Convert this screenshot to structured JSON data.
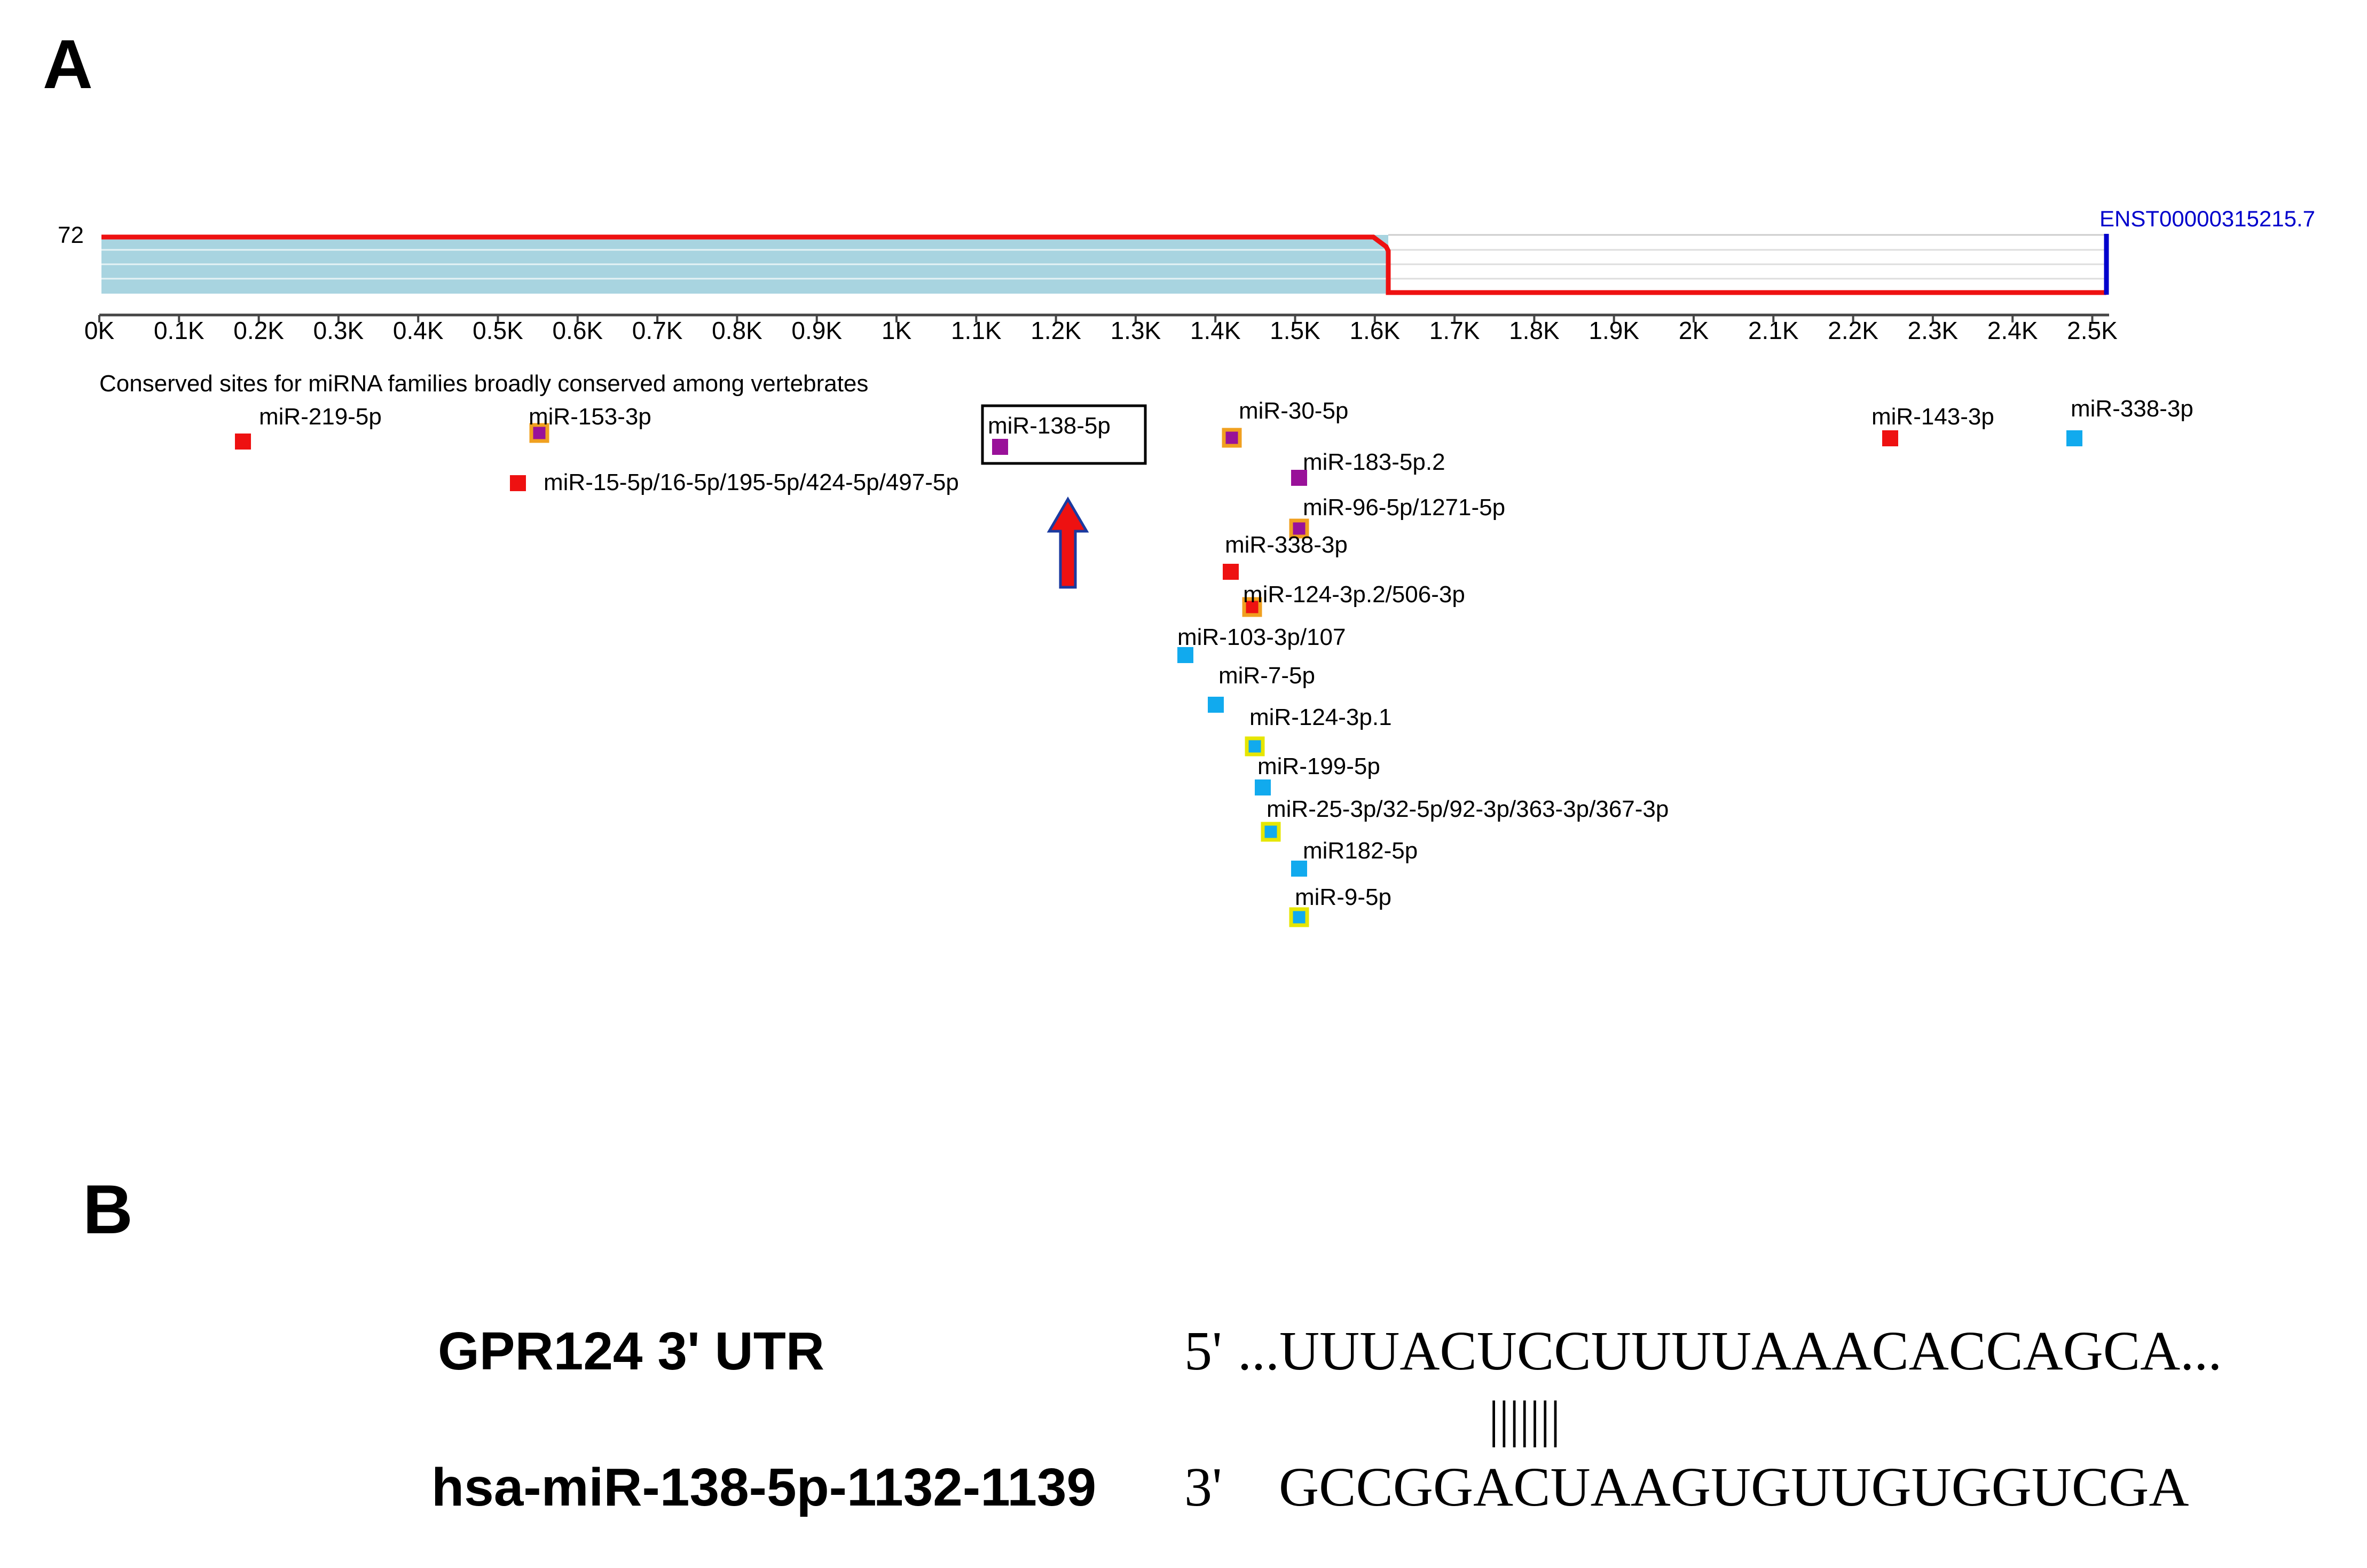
{
  "panelA": {
    "letter": "A",
    "score_label": "72",
    "transcript_id": "ENST00000315215.7",
    "axis_ticks": [
      "0K",
      "0.1K",
      "0.2K",
      "0.3K",
      "0.4K",
      "0.5K",
      "0.6K",
      "0.7K",
      "0.8K",
      "0.9K",
      "1K",
      "1.1K",
      "1.2K",
      "1.3K",
      "1.4K",
      "1.5K",
      "1.6K",
      "1.7K",
      "1.8K",
      "1.9K",
      "2K",
      "2.1K",
      "2.2K",
      "2.3K",
      "2.4K",
      "2.5K"
    ],
    "section_title": "Conserved sites for miRNA families broadly conserved among vertebrates",
    "highlighted_site": "miR-138-5p",
    "sites": [
      {
        "name": "miR-219-5p",
        "fill": "#ee1111",
        "border": "none"
      },
      {
        "name": "miR-153-3p",
        "fill": "#991199",
        "border": "#f0a020"
      },
      {
        "name": "miR-15-5p/16-5p/195-5p/424-5p/497-5p",
        "fill": "#ee1111",
        "border": "none"
      },
      {
        "name": "miR-138-5p",
        "fill": "#991199",
        "border": "none"
      },
      {
        "name": "miR-30-5p",
        "fill": "#991199",
        "border": "#f0a020"
      },
      {
        "name": "miR-183-5p.2",
        "fill": "#991199",
        "border": "none"
      },
      {
        "name": "miR-96-5p/1271-5p",
        "fill": "#991199",
        "border": "#f0a020"
      },
      {
        "name": "miR-338-3p",
        "fill": "#ee1111",
        "border": "none"
      },
      {
        "name": "miR-124-3p.2/506-3p",
        "fill": "#ee1111",
        "border": "#f0a020"
      },
      {
        "name": "miR-103-3p/107",
        "fill": "#11aaee",
        "border": "none"
      },
      {
        "name": "miR-7-5p",
        "fill": "#11aaee",
        "border": "none"
      },
      {
        "name": "miR-124-3p.1",
        "fill": "#11aaee",
        "border": "#e6e600"
      },
      {
        "name": "miR-199-5p",
        "fill": "#11aaee",
        "border": "none"
      },
      {
        "name": "miR-25-3p/32-5p/92-3p/363-3p/367-3p",
        "fill": "#11aaee",
        "border": "#e6e600"
      },
      {
        "name": "miR182-5p",
        "fill": "#11aaee",
        "border": "none"
      },
      {
        "name": "miR-9-5p",
        "fill": "#11aaee",
        "border": "#e6e600"
      },
      {
        "name": "miR-143-3p",
        "fill": "#ee1111",
        "border": "none"
      },
      {
        "name": "miR-338-3p",
        "fill": "#11aaee",
        "border": "none"
      }
    ]
  },
  "panelB": {
    "letter": "B",
    "row1_label": "GPR124  3' UTR",
    "row1_prime": "5'",
    "row1_seq": "...UUUACUCCUUUUAAACACCAGCA...",
    "pairing": "|||||||",
    "row2_label": "hsa-miR-138-5p-1132-1139",
    "row2_prime": "3'",
    "row2_seq": "GCCGGACUAAGUGUUGUGGUCGA"
  },
  "colors": {
    "profile_line": "#ee1111",
    "conservation_fill": "#a8d4e0",
    "transcript_end": "#0000cc",
    "arrow_fill": "#ee1111",
    "arrow_outline": "#1a3aa0"
  }
}
